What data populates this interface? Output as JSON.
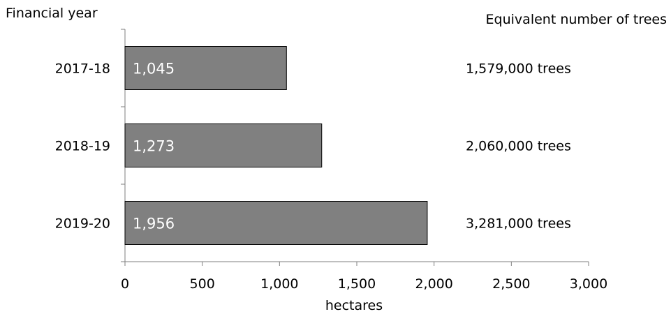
{
  "chart_data": {
    "type": "bar",
    "orientation": "horizontal",
    "title": "",
    "ylabel": "Financial year",
    "xlabel": "hectares",
    "secondary_header": "Equivalent number of trees",
    "categories": [
      "2017-18",
      "2018-19",
      "2019-20"
    ],
    "values": [
      1045,
      1273,
      1956
    ],
    "value_labels": [
      "1,045",
      "1,273",
      "1,956"
    ],
    "tree_labels": [
      "1,579,000 trees",
      "2,060,000 trees",
      "3,281,000 trees"
    ],
    "xlim": [
      0,
      3000
    ],
    "xticks": [
      0,
      500,
      1000,
      1500,
      2000,
      2500,
      3000
    ],
    "xtick_labels": [
      "0",
      "500",
      "1,000",
      "1,500",
      "2,000",
      "2,500",
      "3,000"
    ],
    "bar_color": "#808080",
    "bar_edge_color": "#000000",
    "grid": false,
    "legend": "none"
  }
}
